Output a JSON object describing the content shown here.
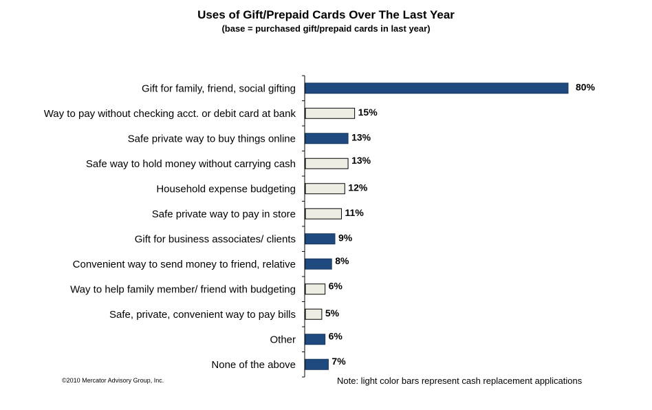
{
  "chart_data": {
    "type": "bar",
    "orientation": "horizontal",
    "title": "Uses of Gift/Prepaid Cards Over The Last Year",
    "subtitle": "(base = purchased gift/prepaid cards in last year)",
    "xlabel": "",
    "ylabel": "",
    "xlim": [
      0,
      80
    ],
    "grid": false,
    "categories": [
      "Gift for family, friend, social gifting",
      "Way to pay without checking acct. or debit card at bank",
      "Safe private way to buy things online",
      "Safe way to hold money without carrying cash",
      "Household expense budgeting",
      "Safe private way to pay in store",
      "Gift for business associates/ clients",
      "Convenient way to send money to friend, relative",
      "Way to help family member/ friend with budgeting",
      "Safe, private, convenient way to pay bills",
      "Other",
      "None of the above"
    ],
    "values": [
      80,
      15,
      13,
      13,
      12,
      11,
      9,
      8,
      6,
      5,
      6,
      7
    ],
    "labels": [
      "80%",
      "15%",
      "13%",
      "13%",
      "12%",
      "11%",
      "9%",
      "8%",
      "6%",
      "5%",
      "6%",
      "7%"
    ],
    "cash_replacement": [
      false,
      true,
      false,
      true,
      true,
      true,
      false,
      false,
      true,
      true,
      false,
      false
    ],
    "colors": {
      "dark": "#1f4a7f",
      "light": "#eeede4"
    }
  },
  "footer": {
    "copyright": "©2010 Mercator Advisory Group, Inc.",
    "note": "Note: light color bars represent cash replacement applications"
  }
}
